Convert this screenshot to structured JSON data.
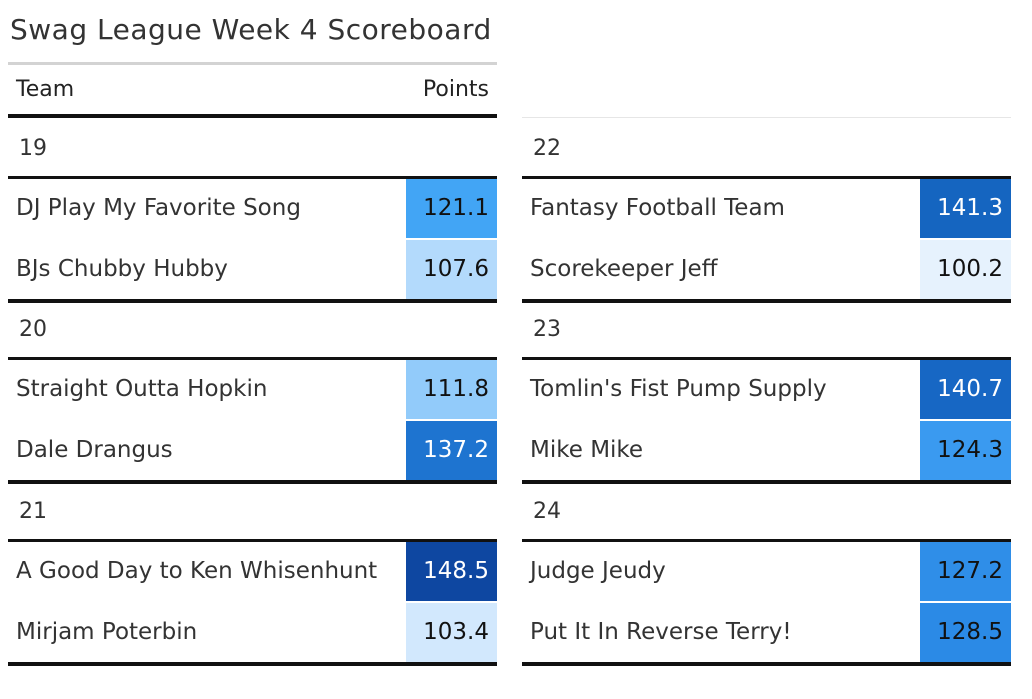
{
  "title": "Swag League Week 4 Scoreboard",
  "columns": {
    "team": "Team",
    "points": "Points"
  },
  "chart_data": {
    "type": "table",
    "title": "Swag League Week 4 Scoreboard",
    "columns": [
      "Team",
      "Points"
    ],
    "games": [
      {
        "id": "19",
        "teams": [
          {
            "name": "DJ Play My Favorite Song",
            "points": "121.1",
            "color": "#42a5f5"
          },
          {
            "name": "BJs Chubby Hubby",
            "points": "107.6",
            "color": "#b3dafc"
          }
        ]
      },
      {
        "id": "20",
        "teams": [
          {
            "name": "Straight Outta Hopkin",
            "points": "111.8",
            "color": "#92cbfa"
          },
          {
            "name": "Dale Drangus",
            "points": "137.2",
            "color": "#1e74d0"
          }
        ]
      },
      {
        "id": "21",
        "teams": [
          {
            "name": "A Good Day to Ken Whisenhunt",
            "points": "148.5",
            "color": "#0e47a1"
          },
          {
            "name": "Mirjam Poterbin",
            "points": "103.4",
            "color": "#d2e8fd"
          }
        ]
      },
      {
        "id": "22",
        "teams": [
          {
            "name": "Fantasy Football Team",
            "points": "141.3",
            "color": "#1565c0"
          },
          {
            "name": "Scorekeeper Jeff",
            "points": "100.2",
            "color": "#e6f2fd"
          }
        ]
      },
      {
        "id": "23",
        "teams": [
          {
            "name": "Tomlin's Fist Pump Supply",
            "points": "140.7",
            "color": "#1767c4"
          },
          {
            "name": "Mike Mike",
            "points": "124.3",
            "color": "#3a9af0"
          }
        ]
      },
      {
        "id": "24",
        "teams": [
          {
            "name": "Judge Jeudy",
            "points": "127.2",
            "color": "#2f8ee8"
          },
          {
            "name": "Put It In Reverse Terry!",
            "points": "128.5",
            "color": "#2b8ae6"
          }
        ]
      }
    ]
  }
}
